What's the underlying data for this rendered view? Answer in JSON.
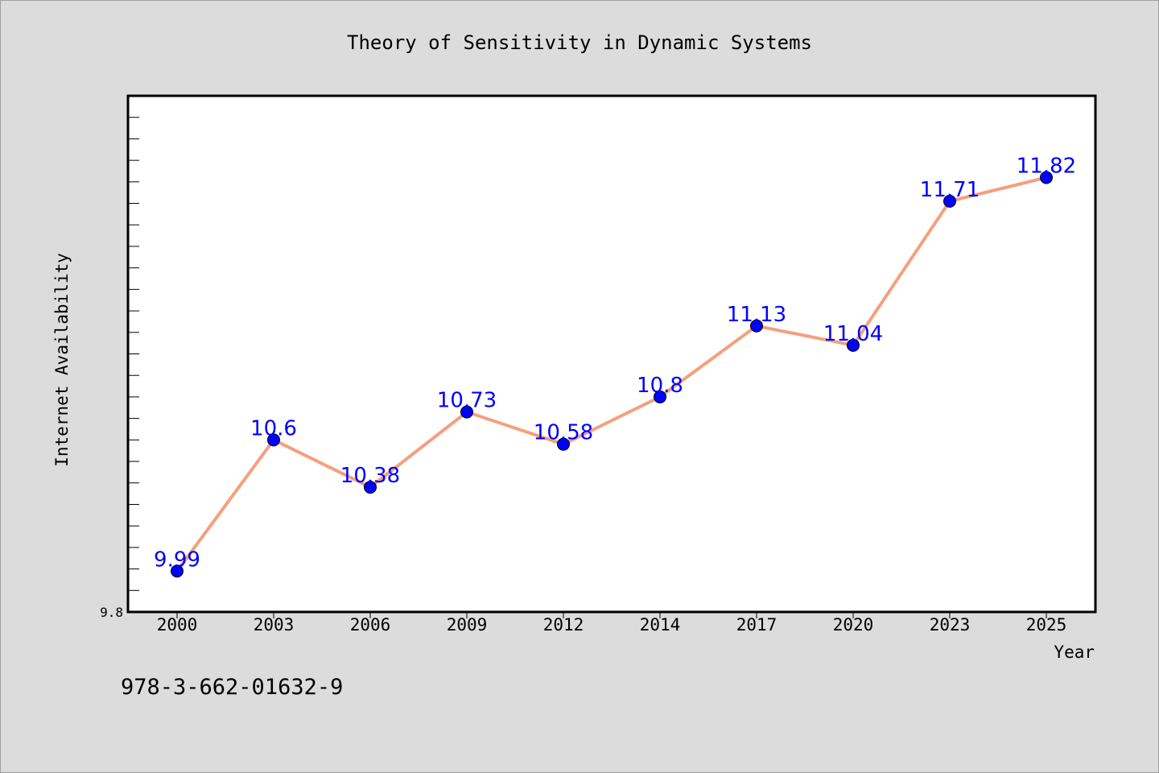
{
  "chart_data": {
    "type": "line",
    "title": "Theory of Sensitivity in Dynamic Systems",
    "xlabel": "Year",
    "ylabel": "Internet Availability",
    "categories": [
      "2000",
      "2003",
      "2006",
      "2009",
      "2012",
      "2014",
      "2017",
      "2020",
      "2023",
      "2025"
    ],
    "series": [
      {
        "values": [
          9.99,
          10.6,
          10.38,
          10.73,
          10.58,
          10.8,
          11.13,
          11.04,
          11.71,
          11.82
        ],
        "labels": [
          "9.99",
          "10.6",
          "10.38",
          "10.73",
          "10.58",
          "10.8",
          "11.13",
          "11.04",
          "11.71",
          "11.82"
        ],
        "line_color": "#f4a07e",
        "marker_color": "#0000ff"
      }
    ],
    "ylim": [
      9.8,
      12.2
    ],
    "y_tick_labels": [
      "9.8"
    ],
    "grid": false,
    "legend": "none"
  },
  "footer": {
    "isbn": "978-3-662-01632-9"
  }
}
